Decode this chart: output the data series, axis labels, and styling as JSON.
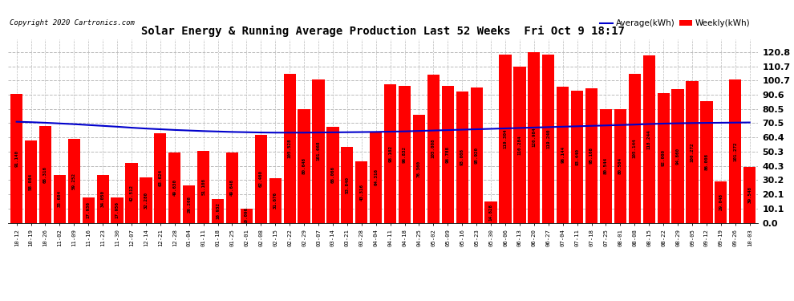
{
  "title": "Solar Energy & Running Average Production Last 52 Weeks  Fri Oct 9 18:17",
  "copyright": "Copyright 2020 Cartronics.com",
  "bar_color": "#ff0000",
  "avg_line_color": "#0000cc",
  "background_color": "#ffffff",
  "plot_bg_color": "#ffffff",
  "grid_color": "#bbbbbb",
  "legend_avg": "Average(kWh)",
  "legend_weekly": "Weekly(kWh)",
  "ytick_values": [
    0.0,
    10.1,
    20.1,
    30.2,
    40.3,
    50.3,
    60.4,
    70.5,
    80.5,
    90.6,
    100.7,
    110.7,
    120.8
  ],
  "ytick_labels": [
    "0.0",
    "10.1",
    "20.1",
    "30.2",
    "40.3",
    "50.3",
    "60.4",
    "70.5",
    "80.5",
    "90.6",
    "100.7",
    "110.7",
    "120.8"
  ],
  "categories": [
    "10-12",
    "10-19",
    "10-26",
    "11-02",
    "11-09",
    "11-16",
    "11-23",
    "11-30",
    "12-07",
    "12-14",
    "12-21",
    "12-28",
    "01-04",
    "01-11",
    "01-18",
    "01-25",
    "02-01",
    "02-08",
    "02-15",
    "02-22",
    "02-29",
    "03-07",
    "03-14",
    "03-21",
    "03-28",
    "04-04",
    "04-11",
    "04-18",
    "04-25",
    "05-02",
    "05-09",
    "05-16",
    "05-23",
    "05-30",
    "06-06",
    "06-13",
    "06-20",
    "06-27",
    "07-04",
    "07-11",
    "07-18",
    "07-25",
    "08-01",
    "08-08",
    "08-15",
    "08-22",
    "08-29",
    "09-05",
    "09-12",
    "09-19",
    "09-26",
    "10-03"
  ],
  "weekly_values": [
    91.14,
    58.084,
    68.316,
    33.684,
    59.252,
    17.936,
    34.05,
    17.956,
    42.512,
    32.28,
    63.624,
    49.63,
    26.208,
    51.108,
    16.932,
    49.648,
    10.096,
    62.46,
    31.676,
    105.528,
    80.648,
    101.668,
    68.066,
    53.84,
    43.316,
    64.316,
    98.102,
    96.832,
    76.36,
    105.008,
    96.788,
    93.008,
    95.92,
    14.828,
    119.304,
    110.284,
    120.984,
    119.24,
    96.144,
    93.44,
    95.168,
    80.544,
    80.504,
    105.144,
    118.244,
    92.0,
    94.86,
    100.272,
    86.008,
    29.048,
    101.272,
    39.548
  ],
  "bar_labels": [
    "91.140",
    "58.084",
    "68.316",
    "33.684",
    "59.252",
    "17.936",
    "34.050",
    "17.956",
    "42.512",
    "32.280",
    "63.624",
    "49.630",
    "26.208",
    "51.108",
    "16.932",
    "49.648",
    "10.096",
    "62.460",
    "31.676",
    "105.528",
    "80.648",
    "101.668",
    "68.066",
    "53.840",
    "43.316",
    "64.316",
    "98.102",
    "96.832",
    "76.360",
    "105.008",
    "96.788",
    "93.008",
    "95.920",
    "14.828",
    "119.304",
    "110.284",
    "120.984",
    "119.240",
    "96.144",
    "93.440",
    "95.168",
    "80.544",
    "80.504",
    "105.144",
    "118.244",
    "92.000",
    "94.860",
    "100.272",
    "86.008",
    "29.048",
    "101.272",
    "39.548"
  ],
  "avg_values": [
    71.5,
    71.2,
    70.8,
    70.3,
    69.8,
    69.2,
    68.6,
    68.0,
    67.3,
    66.7,
    66.2,
    65.7,
    65.3,
    64.9,
    64.6,
    64.3,
    64.1,
    63.9,
    63.8,
    63.8,
    63.8,
    63.9,
    64.0,
    64.1,
    64.2,
    64.3,
    64.5,
    64.7,
    65.0,
    65.3,
    65.6,
    65.9,
    66.2,
    66.5,
    66.8,
    67.1,
    67.4,
    67.7,
    68.0,
    68.3,
    68.6,
    68.9,
    69.2,
    69.5,
    69.9,
    70.2,
    70.4,
    70.6,
    70.7,
    70.8,
    70.9,
    71.0
  ],
  "figsize": [
    9.9,
    3.75
  ],
  "dpi": 100,
  "ylim_max": 130,
  "title_fontsize": 10,
  "bar_label_fontsize": 4.2,
  "xtick_fontsize": 5.2,
  "ytick_fontsize": 8,
  "legend_fontsize": 7.5,
  "copyright_fontsize": 6.5
}
